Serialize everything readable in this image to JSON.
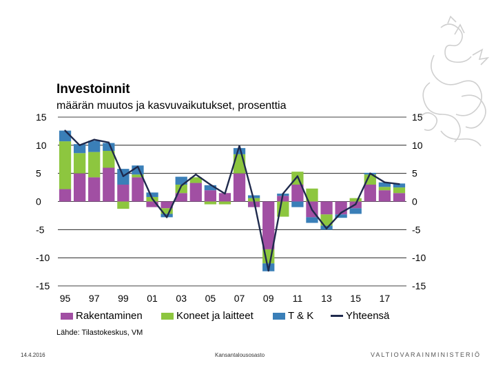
{
  "header": {
    "title": "Investoinnit",
    "subtitle": "määrän muutos ja kasvuvaikutukset, prosenttia"
  },
  "source": "Lähde: Tilastokeskus, VM",
  "footer": {
    "date": "14.4.2016",
    "department": "Kansantalousosasto",
    "ministry": "VALTIOVARAINMINISTERIÖ"
  },
  "colors": {
    "rakentaminen": "#a14fa3",
    "koneet": "#8dc63f",
    "tk": "#3a7fb8",
    "yhteensa": "#1f2a4d",
    "grid": "#000000"
  },
  "chart_data": {
    "type": "bar",
    "stacked": true,
    "title": "Investoinnit",
    "subtitle": "määrän muutos ja kasvuvaikutukset, prosenttia",
    "ylim": [
      -15,
      15
    ],
    "yticks": [
      "15",
      "10",
      "5",
      "0",
      "-5",
      "-10",
      "-15"
    ],
    "ytick_values": [
      15,
      10,
      5,
      0,
      -5,
      -10,
      -15
    ],
    "categories": [
      1995,
      1996,
      1997,
      1998,
      1999,
      2000,
      2001,
      2002,
      2003,
      2004,
      2005,
      2006,
      2007,
      2008,
      2009,
      2010,
      2011,
      2012,
      2013,
      2014,
      2015,
      2016,
      2017,
      2018
    ],
    "xtick_labels": [
      "95",
      "97",
      "99",
      "01",
      "03",
      "05",
      "07",
      "09",
      "11",
      "13",
      "15",
      "17"
    ],
    "series": [
      {
        "name": "Rakentaminen",
        "values": [
          2.2,
          5.0,
          4.3,
          6.0,
          3.0,
          4.3,
          -1.0,
          -1.2,
          1.5,
          3.3,
          2.0,
          1.5,
          5.0,
          -1.0,
          -8.5,
          1.0,
          3.0,
          -2.8,
          -2.3,
          -2.3,
          -1.2,
          3.0,
          2.0,
          1.5
        ]
      },
      {
        "name": "Koneet ja laitteet",
        "values": [
          8.5,
          3.6,
          4.5,
          3.0,
          -1.3,
          0.5,
          0.8,
          -1.0,
          1.5,
          1.0,
          -0.5,
          -0.5,
          3.4,
          0.6,
          -2.5,
          -2.7,
          2.3,
          2.3,
          -2.0,
          0.0,
          0.6,
          1.8,
          0.6,
          1.0
        ]
      },
      {
        "name": "T & K",
        "values": [
          1.9,
          1.6,
          2.0,
          1.4,
          2.8,
          1.6,
          0.8,
          -0.6,
          1.4,
          0.0,
          0.9,
          0.0,
          1.1,
          0.5,
          -1.4,
          0.4,
          -1.0,
          -1.0,
          -0.7,
          -0.6,
          -1.0,
          0.3,
          0.8,
          0.7
        ]
      },
      {
        "name": "Yhteensä",
        "type": "line",
        "values": [
          12.6,
          10.0,
          11.0,
          10.5,
          4.5,
          6.2,
          0.5,
          -2.8,
          2.8,
          4.8,
          3.0,
          1.4,
          9.9,
          0.2,
          -12.3,
          1.4,
          4.5,
          -1.5,
          -4.8,
          -2.0,
          -0.5,
          5.0,
          3.4,
          3.1
        ]
      }
    ]
  }
}
